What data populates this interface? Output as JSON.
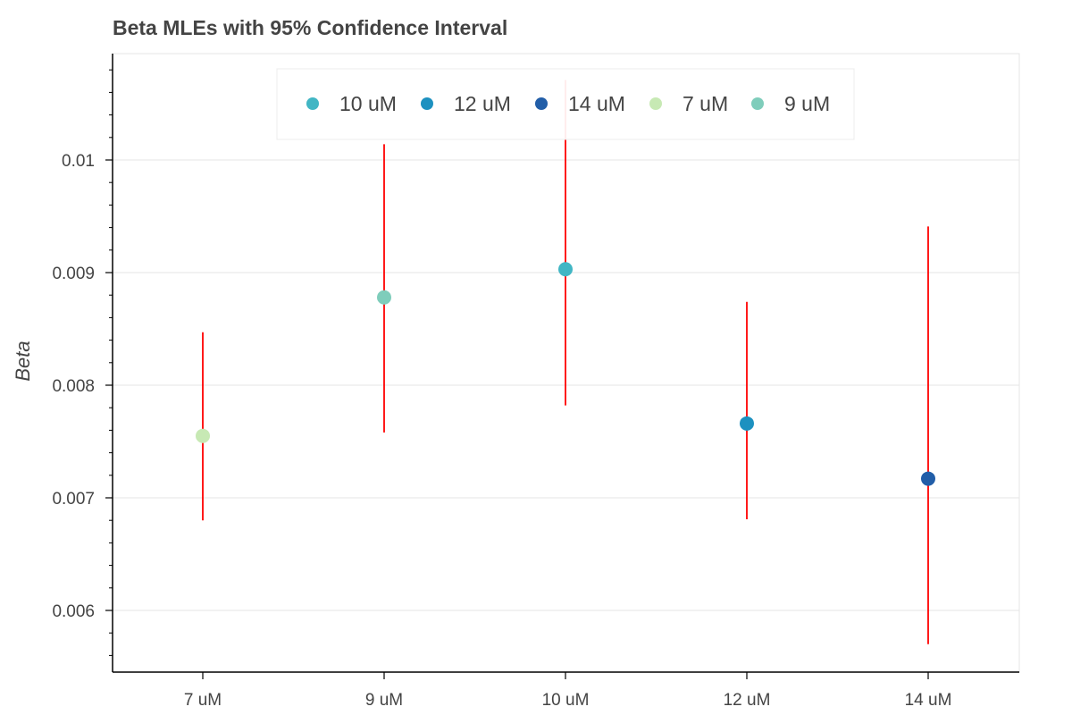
{
  "chart_data": {
    "type": "scatter",
    "title": "Beta MLEs with 95% Confidence Interval",
    "xlabel": "",
    "ylabel": "Beta",
    "categories": [
      "7 uM",
      "9 uM",
      "10 uM",
      "12 uM",
      "14 uM"
    ],
    "yticks": [
      "0.006",
      "0.007",
      "0.008",
      "0.009",
      "0.01"
    ],
    "ylim": [
      0.00545,
      0.0108
    ],
    "grid": "horizontal",
    "legend_position": "top-center",
    "points": [
      {
        "category": "7 uM",
        "value": 0.00755,
        "ci_low": 0.0068,
        "ci_high": 0.00847,
        "color": "#c7e9b4"
      },
      {
        "category": "9 uM",
        "value": 0.00878,
        "ci_low": 0.00758,
        "ci_high": 0.01014,
        "color": "#7fcdbb"
      },
      {
        "category": "10 uM",
        "value": 0.00903,
        "ci_low": 0.00782,
        "ci_high": 0.01071,
        "color": "#41b6c4"
      },
      {
        "category": "12 uM",
        "value": 0.00766,
        "ci_low": 0.00681,
        "ci_high": 0.00874,
        "color": "#1d91c0"
      },
      {
        "category": "14 uM",
        "value": 0.00717,
        "ci_low": 0.0057,
        "ci_high": 0.00941,
        "color": "#225ea8"
      }
    ],
    "legend": [
      {
        "label": "10 uM",
        "color": "#41b6c4"
      },
      {
        "label": "12 uM",
        "color": "#1d91c0"
      },
      {
        "label": "14 uM",
        "color": "#225ea8"
      },
      {
        "label": "7 uM",
        "color": "#c7e9b4"
      },
      {
        "label": "9 uM",
        "color": "#7fcdbb"
      }
    ],
    "errorbar_color": "#ff0000"
  }
}
